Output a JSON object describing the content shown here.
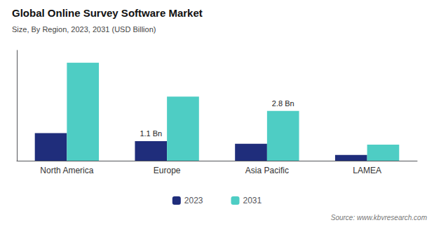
{
  "chart_data": {
    "type": "bar",
    "title": "Global Online Survey Software Market",
    "subtitle": "Size, By Region, 2023, 2031 (USD Billion)",
    "categories": [
      "North America",
      "Europe",
      "Asia Pacific",
      "LAMEA"
    ],
    "series": [
      {
        "name": "2023",
        "color": "#1f2d7b",
        "values": [
          1.55,
          1.1,
          0.95,
          0.32
        ]
      },
      {
        "name": "2031",
        "color": "#4ecdc4",
        "values": [
          5.5,
          3.6,
          2.8,
          0.9
        ]
      }
    ],
    "annotations": [
      {
        "text": "1.1 Bn",
        "series": "2023",
        "category": "Europe"
      },
      {
        "text": "2.8 Bn",
        "series": "2031",
        "category": "Asia Pacific"
      }
    ],
    "source": "Source: www.kbvresearch.com",
    "ylim": [
      0,
      6.2
    ],
    "tick_labels": "x",
    "grid": false,
    "legend": "bottom"
  }
}
